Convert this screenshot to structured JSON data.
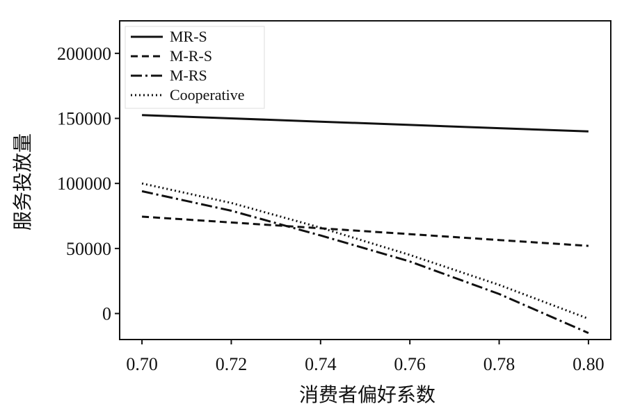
{
  "chart_data": {
    "type": "line",
    "title": "",
    "xlabel": "消费者偏好系数",
    "ylabel": "服务投放量",
    "xlim": [
      0.695,
      0.805
    ],
    "ylim": [
      -20000,
      225000
    ],
    "x_ticks": [
      0.7,
      0.72,
      0.74,
      0.76,
      0.78,
      0.8
    ],
    "x_tick_labels": [
      "0.70",
      "0.72",
      "0.74",
      "0.76",
      "0.78",
      "0.80"
    ],
    "y_ticks": [
      0,
      50000,
      100000,
      150000,
      200000
    ],
    "y_tick_labels": [
      "0",
      "50000",
      "100000",
      "150000",
      "200000"
    ],
    "legend_position": "top-left",
    "grid": false,
    "x": [
      0.7,
      0.72,
      0.74,
      0.76,
      0.78,
      0.8
    ],
    "series": [
      {
        "name": "MR-S",
        "style": "solid",
        "values": [
          152500,
          150000,
          147500,
          145000,
          142500,
          140000
        ]
      },
      {
        "name": "M-R-S",
        "style": "dashed",
        "values": [
          74500,
          70000,
          65500,
          61000,
          56500,
          52000
        ]
      },
      {
        "name": "M-RS",
        "style": "dashdot",
        "values": [
          94000,
          79000,
          60000,
          40000,
          15000,
          -15000
        ]
      },
      {
        "name": "Cooperative",
        "style": "dotted",
        "values": [
          100000,
          85000,
          66000,
          45000,
          22000,
          -4000
        ]
      }
    ]
  }
}
